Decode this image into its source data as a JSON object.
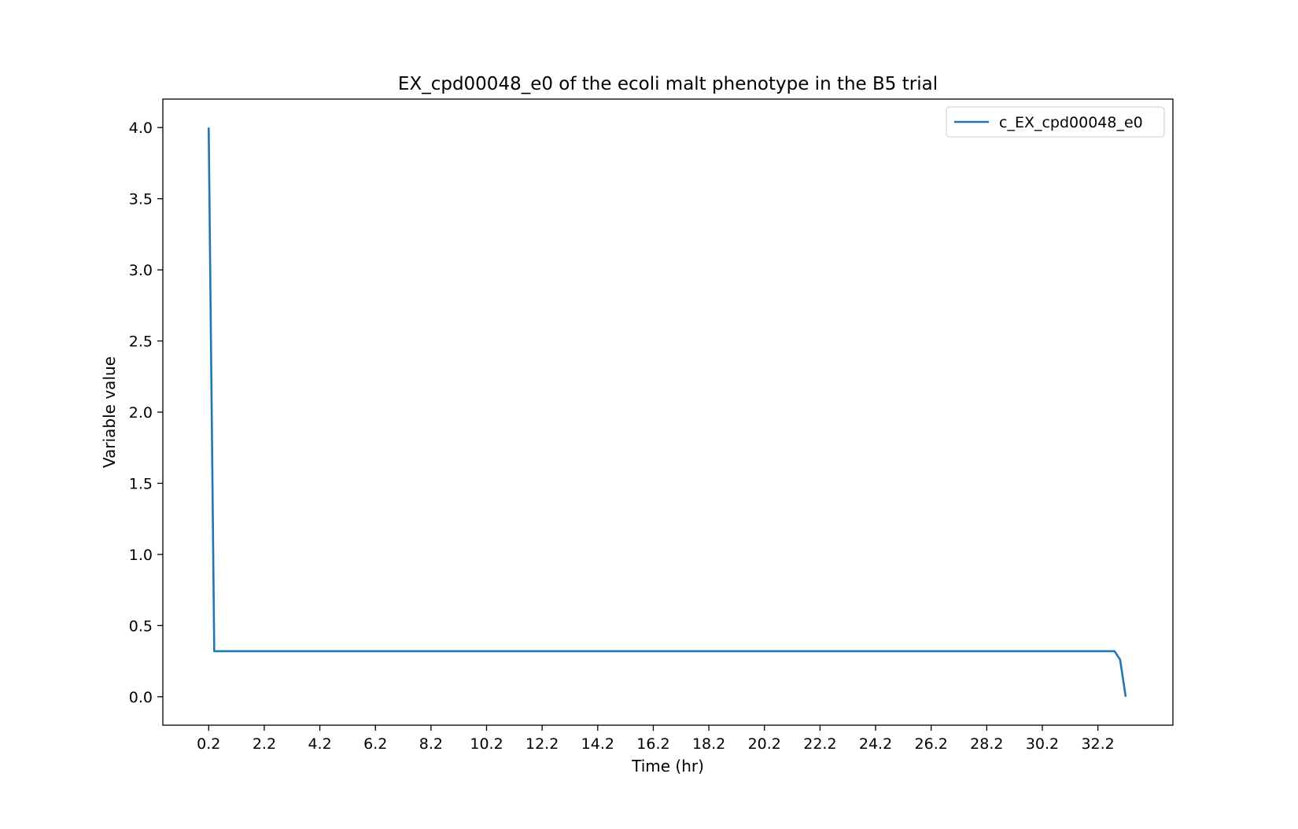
{
  "chart_data": {
    "type": "line",
    "title": "EX_cpd00048_e0 of the ecoli malt phenotype in the B5 trial",
    "xlabel": "Time (hr)",
    "ylabel": "Variable value",
    "xlim": [
      -1.45,
      34.9
    ],
    "ylim": [
      -0.2,
      4.2
    ],
    "x_ticks": [
      0.2,
      2.2,
      4.2,
      6.2,
      8.2,
      10.2,
      12.2,
      14.2,
      16.2,
      18.2,
      20.2,
      22.2,
      24.2,
      26.2,
      28.2,
      30.2,
      32.2
    ],
    "x_tick_labels": [
      "0.2",
      "2.2",
      "4.2",
      "6.2",
      "8.2",
      "10.2",
      "12.2",
      "14.2",
      "16.2",
      "18.2",
      "20.2",
      "22.2",
      "24.2",
      "26.2",
      "28.2",
      "30.2",
      "32.2"
    ],
    "y_ticks": [
      0.0,
      0.5,
      1.0,
      1.5,
      2.0,
      2.5,
      3.0,
      3.5,
      4.0
    ],
    "y_tick_labels": [
      "0.0",
      "0.5",
      "1.0",
      "1.5",
      "2.0",
      "2.5",
      "3.0",
      "3.5",
      "4.0"
    ],
    "grid": false,
    "legend_position": "top-right",
    "series": [
      {
        "name": "c_EX_cpd00048_e0",
        "color": "#1f77b4",
        "x": [
          0.2,
          0.4,
          32.8,
          33.0,
          33.2
        ],
        "y": [
          4.0,
          0.32,
          0.32,
          0.26,
          0.0
        ]
      }
    ]
  }
}
